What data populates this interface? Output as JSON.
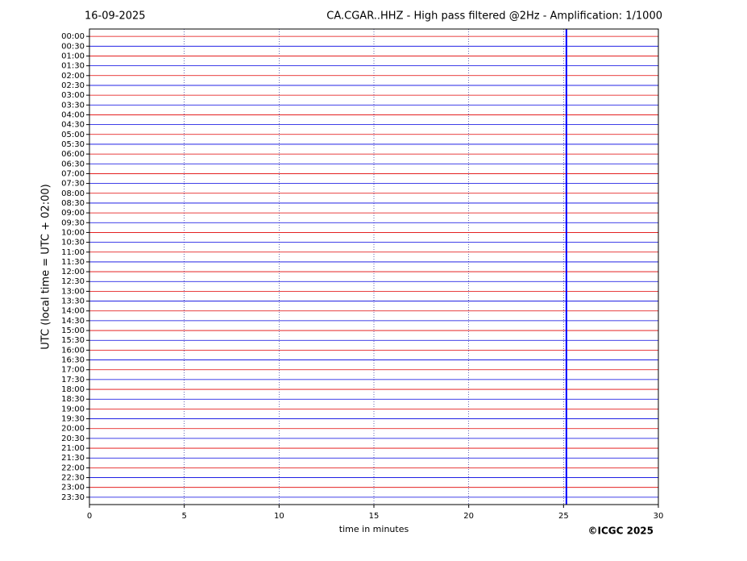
{
  "chart_data": {
    "type": "helicorder",
    "date": "16-09-2025",
    "title": "CA.CGAR..HHZ - High pass filtered @2Hz - Amplification: 1/1000",
    "ylabel": "UTC (local time = UTC + 02:00)",
    "xlabel": "time in minutes",
    "copyright": "©ICGC 2025",
    "categories": [
      "00:00",
      "00:30",
      "01:00",
      "01:30",
      "02:00",
      "02:30",
      "03:00",
      "03:30",
      "04:00",
      "04:30",
      "05:00",
      "05:30",
      "06:00",
      "06:30",
      "07:00",
      "07:30",
      "08:00",
      "08:30",
      "09:00",
      "09:30",
      "10:00",
      "10:30",
      "11:00",
      "11:30",
      "12:00",
      "12:30",
      "13:00",
      "13:30",
      "14:00",
      "14:30",
      "15:00",
      "15:30",
      "16:00",
      "16:30",
      "17:00",
      "17:30",
      "18:00",
      "18:30",
      "19:00",
      "19:30",
      "20:00",
      "20:30",
      "21:00",
      "21:30",
      "22:00",
      "22:30",
      "23:00",
      "23:30"
    ],
    "trace_colors": [
      "#e00000",
      "#0000e0"
    ],
    "xlim": [
      0,
      30
    ],
    "xticks": [
      0,
      5,
      10,
      15,
      20,
      25,
      30
    ],
    "grid": true,
    "events": [
      {
        "x": 25.15,
        "color": "#0000ff"
      }
    ]
  }
}
